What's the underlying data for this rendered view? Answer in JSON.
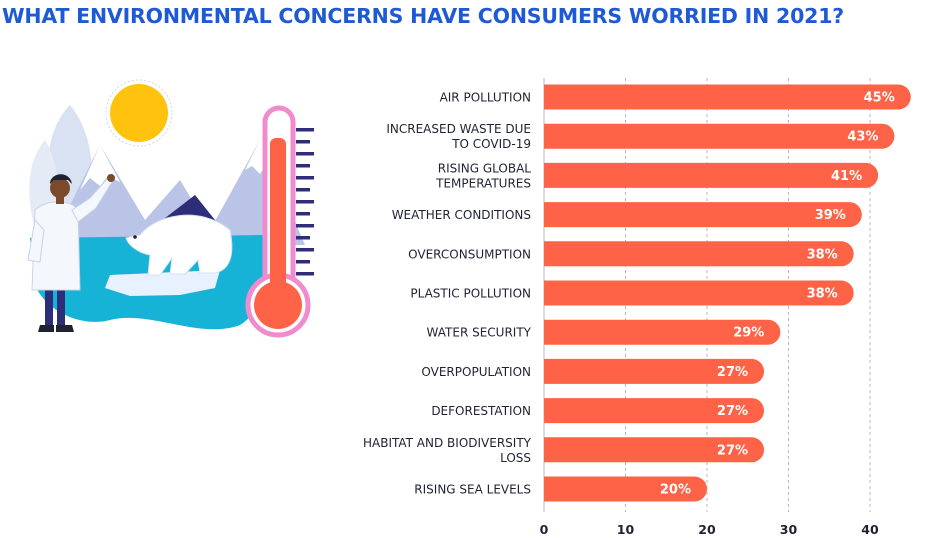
{
  "title": "WHAT ENVIRONMENTAL CONCERNS HAVE CONSUMERS WORRIED IN 2021?",
  "colors": {
    "title": "#1e5ad6",
    "bar": "#ff6347",
    "grid": "#b8b8b8",
    "text": "#1f2233"
  },
  "chart_data": {
    "type": "bar",
    "orientation": "horizontal",
    "categories": [
      [
        "AIR POLLUTION"
      ],
      [
        "INCREASED WASTE DUE",
        "TO COVID-19"
      ],
      [
        "RISING GLOBAL",
        "TEMPERATURES"
      ],
      [
        "WEATHER CONDITIONS"
      ],
      [
        "OVERCONSUMPTION"
      ],
      [
        "PLASTIC POLLUTION"
      ],
      [
        "WATER SECURITY"
      ],
      [
        "OVERPOPULATION"
      ],
      [
        "DEFORESTATION"
      ],
      [
        "HABITAT AND BIODIVERSITY",
        "LOSS"
      ],
      [
        "RISING SEA LEVELS"
      ]
    ],
    "values": [
      45,
      43,
      41,
      39,
      38,
      38,
      29,
      27,
      27,
      27,
      20
    ],
    "value_labels": [
      "45%",
      "43%",
      "41%",
      "39%",
      "38%",
      "38%",
      "29%",
      "27%",
      "27%",
      "27%",
      "20%"
    ],
    "xlim": [
      0,
      45
    ],
    "xticks": [
      0,
      10,
      20,
      30,
      40
    ],
    "grid": "vertical dashed",
    "legend": "none"
  }
}
